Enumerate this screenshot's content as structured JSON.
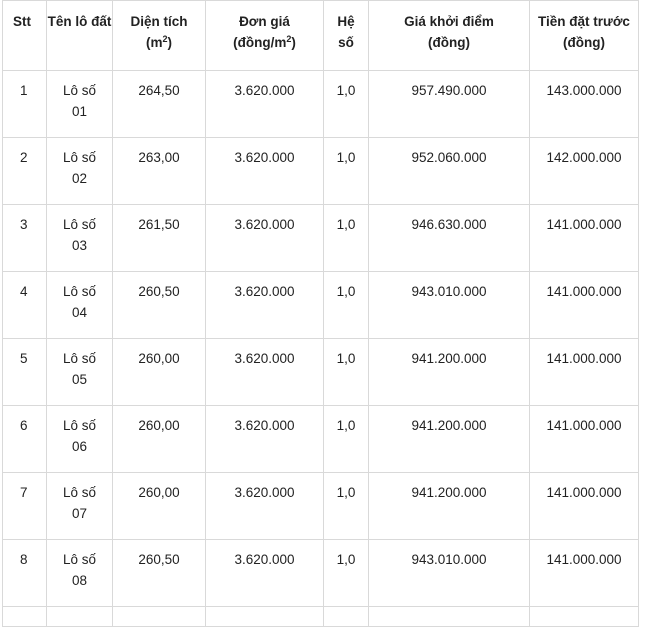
{
  "table": {
    "headers": {
      "stt": "Stt",
      "ten_lo": "Tên lô đất",
      "dien_tich": "Diện tích",
      "dien_tich_unit_open": "(m",
      "dien_tich_unit_sup": "2",
      "dien_tich_unit_close": ")",
      "don_gia": "Đơn giá",
      "don_gia_unit_open": "(đồng/m",
      "don_gia_unit_sup": "2",
      "don_gia_unit_close": ")",
      "he_so_1": "Hệ",
      "he_so_2": "số",
      "gia_khoi_diem": "Giá khởi điểm",
      "gia_khoi_diem_unit": "(đồng)",
      "tien_dat_truoc": "Tiền đặt trước",
      "tien_dat_truoc_unit": "(đồng)"
    },
    "rows": [
      {
        "stt": "1",
        "ten_lo_a": "Lô số",
        "ten_lo_b": "01",
        "dien_tich": "264,50",
        "don_gia": "3.620.000",
        "he_so": "1,0",
        "gia_khoi_diem": "957.490.000",
        "tien_dat_truoc": "143.000.000"
      },
      {
        "stt": "2",
        "ten_lo_a": "Lô số",
        "ten_lo_b": "02",
        "dien_tich": "263,00",
        "don_gia": "3.620.000",
        "he_so": "1,0",
        "gia_khoi_diem": "952.060.000",
        "tien_dat_truoc": "142.000.000"
      },
      {
        "stt": "3",
        "ten_lo_a": "Lô số",
        "ten_lo_b": "03",
        "dien_tich": "261,50",
        "don_gia": "3.620.000",
        "he_so": "1,0",
        "gia_khoi_diem": "946.630.000",
        "tien_dat_truoc": "141.000.000"
      },
      {
        "stt": "4",
        "ten_lo_a": "Lô số",
        "ten_lo_b": "04",
        "dien_tich": "260,50",
        "don_gia": "3.620.000",
        "he_so": "1,0",
        "gia_khoi_diem": "943.010.000",
        "tien_dat_truoc": "141.000.000"
      },
      {
        "stt": "5",
        "ten_lo_a": "Lô số",
        "ten_lo_b": "05",
        "dien_tich": "260,00",
        "don_gia": "3.620.000",
        "he_so": "1,0",
        "gia_khoi_diem": "941.200.000",
        "tien_dat_truoc": "141.000.000"
      },
      {
        "stt": "6",
        "ten_lo_a": "Lô số",
        "ten_lo_b": "06",
        "dien_tich": "260,00",
        "don_gia": "3.620.000",
        "he_so": "1,0",
        "gia_khoi_diem": "941.200.000",
        "tien_dat_truoc": "141.000.000"
      },
      {
        "stt": "7",
        "ten_lo_a": "Lô số",
        "ten_lo_b": "07",
        "dien_tich": "260,00",
        "don_gia": "3.620.000",
        "he_so": "1,0",
        "gia_khoi_diem": "941.200.000",
        "tien_dat_truoc": "141.000.000"
      },
      {
        "stt": "8",
        "ten_lo_a": "Lô số",
        "ten_lo_b": "08",
        "dien_tich": "260,50",
        "don_gia": "3.620.000",
        "he_so": "1,0",
        "gia_khoi_diem": "943.010.000",
        "tien_dat_truoc": "141.000.000"
      }
    ]
  }
}
